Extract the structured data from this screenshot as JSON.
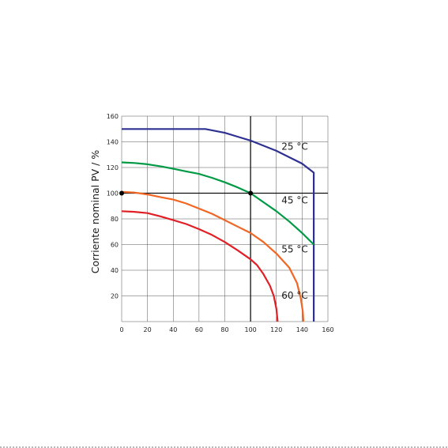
{
  "chart_data": {
    "type": "line",
    "title": "",
    "xlabel": "",
    "ylabel": "Corriente nominal PV / %",
    "xlim": [
      0,
      160
    ],
    "ylim": [
      0,
      160
    ],
    "xticks": [
      0,
      20,
      40,
      60,
      80,
      100,
      120,
      140,
      160
    ],
    "yticks": [
      20,
      40,
      60,
      80,
      100,
      120,
      140,
      160
    ],
    "grid": true,
    "legend": "none",
    "reference_lines": {
      "x": 100,
      "y": 100
    },
    "markers": [
      {
        "x": 0,
        "y": 100
      },
      {
        "x": 100,
        "y": 100
      }
    ],
    "series": [
      {
        "name": "25 °C",
        "color": "#2e3192",
        "points": [
          [
            0,
            150
          ],
          [
            20,
            150
          ],
          [
            40,
            150
          ],
          [
            65,
            150
          ],
          [
            80,
            147
          ],
          [
            90,
            144
          ],
          [
            100,
            141
          ],
          [
            110,
            137
          ],
          [
            120,
            133
          ],
          [
            130,
            128
          ],
          [
            140,
            123
          ],
          [
            149,
            116
          ],
          [
            149,
            0
          ]
        ]
      },
      {
        "name": "45 °C",
        "color": "#009a44",
        "points": [
          [
            0,
            124
          ],
          [
            10,
            123.5
          ],
          [
            20,
            122.5
          ],
          [
            30,
            121
          ],
          [
            40,
            119
          ],
          [
            50,
            117
          ],
          [
            60,
            115
          ],
          [
            70,
            112
          ],
          [
            80,
            108.5
          ],
          [
            90,
            104.5
          ],
          [
            100,
            100
          ],
          [
            110,
            93
          ],
          [
            120,
            86
          ],
          [
            130,
            78
          ],
          [
            140,
            69
          ],
          [
            149,
            60
          ]
        ]
      },
      {
        "name": "55 °C",
        "color": "#f26522",
        "points": [
          [
            0,
            101
          ],
          [
            10,
            100.5
          ],
          [
            20,
            99
          ],
          [
            30,
            97
          ],
          [
            40,
            95
          ],
          [
            50,
            92
          ],
          [
            60,
            88
          ],
          [
            70,
            84
          ],
          [
            80,
            79
          ],
          [
            90,
            74
          ],
          [
            100,
            69
          ],
          [
            110,
            62
          ],
          [
            120,
            53
          ],
          [
            130,
            42
          ],
          [
            136,
            30
          ],
          [
            139,
            18
          ],
          [
            140.5,
            8
          ],
          [
            141,
            0
          ]
        ]
      },
      {
        "name": "60 °C",
        "color": "#e01f26",
        "points": [
          [
            0,
            86
          ],
          [
            10,
            85.5
          ],
          [
            20,
            84.5
          ],
          [
            30,
            82
          ],
          [
            40,
            79
          ],
          [
            50,
            76
          ],
          [
            60,
            72
          ],
          [
            70,
            67.5
          ],
          [
            80,
            62
          ],
          [
            90,
            55.5
          ],
          [
            100,
            48.5
          ],
          [
            105,
            44
          ],
          [
            110,
            37
          ],
          [
            115,
            28
          ],
          [
            118,
            20
          ],
          [
            120,
            10
          ],
          [
            121,
            0
          ]
        ]
      }
    ],
    "annotations": [
      {
        "text": "25 °C",
        "x": 124,
        "y": 134
      },
      {
        "text": "45 °C",
        "x": 124,
        "y": 92
      },
      {
        "text": "55 °C",
        "x": 124,
        "y": 54
      },
      {
        "text": "60 °C",
        "x": 124,
        "y": 18
      }
    ]
  }
}
